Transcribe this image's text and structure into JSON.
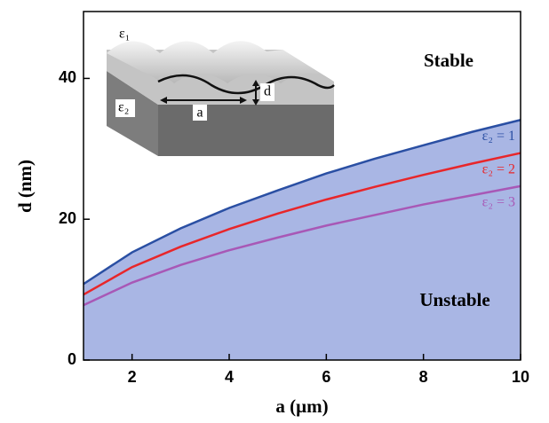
{
  "chart_data": {
    "type": "line",
    "x_label": "a (μm)",
    "y_label": "d (nm)",
    "x": [
      1,
      2,
      3,
      4,
      5,
      6,
      7,
      8,
      9,
      10
    ],
    "series": [
      {
        "name": "ε₂ = 1",
        "color": "#2a4fa3",
        "values": [
          10.8,
          15.3,
          18.7,
          21.6,
          24.1,
          26.5,
          28.6,
          30.5,
          32.4,
          34.1
        ]
      },
      {
        "name": "ε₂ = 2",
        "color": "#e8262a",
        "values": [
          9.3,
          13.2,
          16.1,
          18.6,
          20.8,
          22.8,
          24.6,
          26.3,
          27.9,
          29.4
        ]
      },
      {
        "name": "ε₂ = 3",
        "color": "#a858b6",
        "values": [
          7.8,
          11.0,
          13.5,
          15.6,
          17.4,
          19.1,
          20.6,
          22.1,
          23.4,
          24.7
        ]
      }
    ],
    "fill_color": "#a9b6e4",
    "xlim": [
      1,
      10
    ],
    "xticks": [
      2,
      4,
      6,
      8,
      10
    ],
    "ylim": [
      0,
      49.5
    ],
    "yticks": [
      0,
      20,
      40
    ],
    "annotations": [
      "Stable",
      "Unstable"
    ],
    "inset_labels": [
      "ε₁",
      "ε₂",
      "a",
      "d"
    ]
  }
}
